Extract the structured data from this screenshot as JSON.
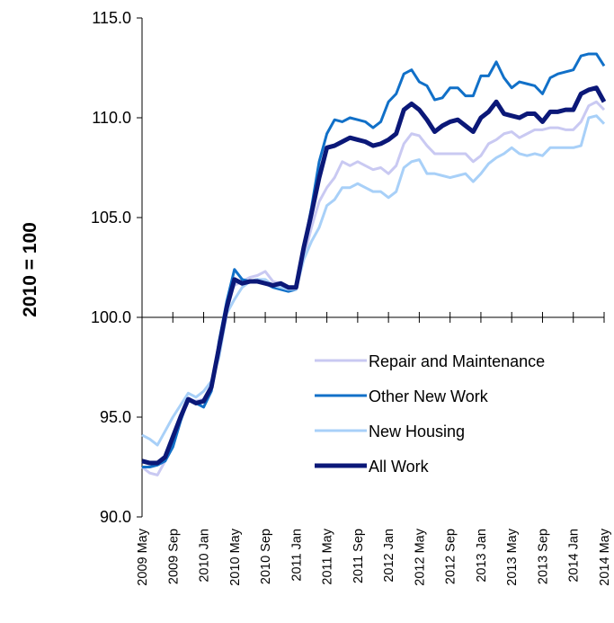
{
  "chart_data": {
    "type": "line",
    "y_label": "2010 = 100",
    "categories": [
      "2009 May",
      null,
      null,
      null,
      "2009 Sep",
      null,
      null,
      null,
      "2010 Jan",
      null,
      null,
      null,
      "2010 May",
      null,
      null,
      null,
      "2010 Sep",
      null,
      null,
      null,
      "2011 Jan",
      null,
      null,
      null,
      "2011 May",
      null,
      null,
      null,
      "2011 Sep",
      null,
      null,
      null,
      "2012 Jan",
      null,
      null,
      null,
      "2012 May",
      null,
      null,
      null,
      "2012 Sep",
      null,
      null,
      null,
      "2013 Jan",
      null,
      null,
      null,
      "2013 May",
      null,
      null,
      null,
      "2013 Sep",
      null,
      null,
      null,
      "2014 Jan",
      null,
      null,
      null,
      "2014 May"
    ],
    "series": [
      {
        "name": "Repair and Maintenance",
        "color": "#c9c9f2",
        "width": 3,
        "values": [
          92.5,
          92.2,
          92.1,
          92.8,
          93.8,
          95.0,
          95.9,
          95.8,
          95.9,
          96.3,
          98.3,
          100.8,
          101.6,
          101.8,
          102.0,
          102.1,
          102.3,
          101.8,
          101.7,
          101.5,
          101.4,
          103.0,
          104.5,
          105.8,
          106.5,
          107.0,
          107.8,
          107.6,
          107.8,
          107.6,
          107.4,
          107.5,
          107.2,
          107.6,
          108.7,
          109.2,
          109.1,
          108.6,
          108.2,
          108.2,
          108.2,
          108.2,
          108.2,
          107.8,
          108.1,
          108.7,
          108.9,
          109.2,
          109.3,
          109.0,
          109.2,
          109.4,
          109.4,
          109.5,
          109.5,
          109.4,
          109.4,
          109.8,
          110.6,
          110.8,
          110.4
        ]
      },
      {
        "name": "Other New Work",
        "color": "#1170c8",
        "width": 3,
        "values": [
          92.5,
          92.5,
          92.6,
          92.8,
          93.5,
          94.8,
          95.9,
          95.7,
          95.5,
          96.3,
          98.8,
          100.8,
          102.4,
          101.9,
          101.8,
          101.9,
          101.7,
          101.5,
          101.4,
          101.3,
          101.4,
          103.5,
          105.5,
          107.8,
          109.2,
          109.9,
          109.8,
          110.0,
          109.9,
          109.8,
          109.5,
          109.8,
          110.8,
          111.2,
          112.2,
          112.4,
          111.8,
          111.6,
          110.9,
          111.0,
          111.5,
          111.5,
          111.1,
          111.1,
          112.1,
          112.1,
          112.8,
          112.0,
          111.5,
          111.8,
          111.7,
          111.6,
          111.2,
          112.0,
          112.2,
          112.3,
          112.4,
          113.1,
          113.2,
          113.2,
          112.6
        ]
      },
      {
        "name": "New Housing",
        "color": "#a8d0f8",
        "width": 3,
        "values": [
          94.1,
          93.9,
          93.6,
          94.3,
          95.0,
          95.6,
          96.2,
          96.0,
          96.3,
          96.8,
          98.0,
          100.2,
          100.9,
          101.5,
          101.8,
          101.9,
          101.9,
          101.6,
          101.5,
          101.4,
          101.4,
          102.9,
          103.8,
          104.5,
          105.6,
          105.9,
          106.5,
          106.5,
          106.7,
          106.5,
          106.3,
          106.3,
          106.0,
          106.3,
          107.5,
          107.8,
          107.9,
          107.2,
          107.2,
          107.1,
          107.0,
          107.1,
          107.2,
          106.8,
          107.2,
          107.7,
          108.0,
          108.2,
          108.5,
          108.2,
          108.1,
          108.2,
          108.1,
          108.5,
          108.5,
          108.5,
          108.5,
          108.6,
          110.0,
          110.1,
          109.7
        ]
      },
      {
        "name": "All Work",
        "color": "#0b1878",
        "width": 5,
        "values": [
          92.8,
          92.7,
          92.7,
          93.0,
          94.0,
          95.0,
          95.9,
          95.7,
          95.8,
          96.5,
          98.5,
          100.5,
          101.9,
          101.7,
          101.8,
          101.8,
          101.7,
          101.6,
          101.7,
          101.5,
          101.5,
          103.5,
          105.2,
          107.0,
          108.5,
          108.6,
          108.8,
          109.0,
          108.9,
          108.8,
          108.6,
          108.7,
          108.9,
          109.2,
          110.4,
          110.7,
          110.4,
          109.9,
          109.3,
          109.6,
          109.8,
          109.9,
          109.6,
          109.3,
          110.0,
          110.3,
          110.8,
          110.2,
          110.1,
          110.0,
          110.2,
          110.2,
          109.8,
          110.3,
          110.3,
          110.4,
          110.4,
          111.2,
          111.4,
          111.5,
          110.8
        ]
      }
    ],
    "ylim": [
      90,
      115
    ],
    "yticks": [
      {
        "value": 90,
        "label": "90.0"
      },
      {
        "value": 95,
        "label": "95.0"
      },
      {
        "value": 100,
        "label": "100.0"
      },
      {
        "value": 105,
        "label": "105.0"
      },
      {
        "value": 110,
        "label": "110.0"
      },
      {
        "value": 115,
        "label": "115.0"
      }
    ],
    "x_axis_at": 100,
    "legend": "lower right"
  }
}
